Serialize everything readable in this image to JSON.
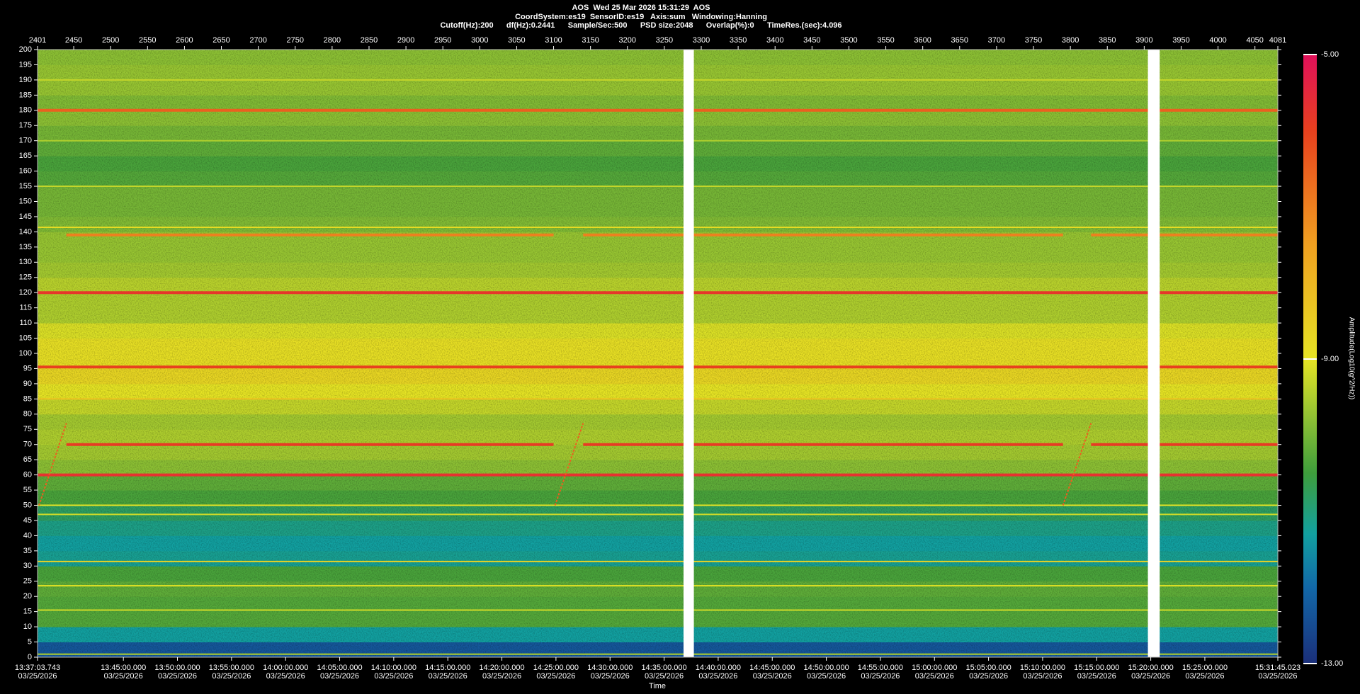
{
  "chart_data": {
    "type": "spectrogram",
    "title": "AOS  Wed 25 Mar 2026 15:31:29  AOS",
    "subtitle": [
      "CoordSystem:es19  SensorID:es19   Axis:sum   Windowing:Hanning",
      "Cutoff(Hz):200      df(Hz):0.2441      Sample/Sec:500      PSD size:2048      Overlap(%):0      TimeRes.(sec):4.096"
    ],
    "xlabel": "Time",
    "colorbar_label": "Amplitude(Log10(g^2/Hz))",
    "xlim": [
      2401,
      4081
    ],
    "xticks": [
      2401,
      2450,
      2500,
      2550,
      2600,
      2650,
      2700,
      2750,
      2800,
      2850,
      2900,
      2950,
      3000,
      3050,
      3100,
      3150,
      3200,
      3250,
      3300,
      3350,
      3400,
      3450,
      3500,
      3550,
      3600,
      3650,
      3700,
      3750,
      3800,
      3850,
      3900,
      3950,
      4000,
      4050,
      4081
    ],
    "time_ticks": [
      {
        "value": 2401,
        "label": "13:37:03.743",
        "date": "03/25/2026"
      },
      {
        "value": 2517.27,
        "label": "13:45:00.000",
        "date": "03/25/2026"
      },
      {
        "value": 2590.51,
        "label": "13:50:00.000",
        "date": "03/25/2026"
      },
      {
        "value": 2663.76,
        "label": "13:55:00.000",
        "date": "03/25/2026"
      },
      {
        "value": 2737.0,
        "label": "14:00:00.000",
        "date": "03/25/2026"
      },
      {
        "value": 2810.24,
        "label": "14:05:00.000",
        "date": "03/25/2026"
      },
      {
        "value": 2883.48,
        "label": "14:10:00.000",
        "date": "03/25/2026"
      },
      {
        "value": 2956.73,
        "label": "14:15:00.000",
        "date": "03/25/2026"
      },
      {
        "value": 3029.97,
        "label": "14:20:00.000",
        "date": "03/25/2026"
      },
      {
        "value": 3103.21,
        "label": "14:25:00.000",
        "date": "03/25/2026"
      },
      {
        "value": 3176.46,
        "label": "14:30:00.000",
        "date": "03/25/2026"
      },
      {
        "value": 3249.7,
        "label": "14:35:00.000",
        "date": "03/25/2026"
      },
      {
        "value": 3322.94,
        "label": "14:40:00.000",
        "date": "03/25/2026"
      },
      {
        "value": 3396.18,
        "label": "14:45:00.000",
        "date": "03/25/2026"
      },
      {
        "value": 3469.43,
        "label": "14:50:00.000",
        "date": "03/25/2026"
      },
      {
        "value": 3542.67,
        "label": "14:55:00.000",
        "date": "03/25/2026"
      },
      {
        "value": 3615.91,
        "label": "15:00:00.000",
        "date": "03/25/2026"
      },
      {
        "value": 3689.16,
        "label": "15:05:00.000",
        "date": "03/25/2026"
      },
      {
        "value": 3762.4,
        "label": "15:10:00.000",
        "date": "03/25/2026"
      },
      {
        "value": 3835.64,
        "label": "15:15:00.000",
        "date": "03/25/2026"
      },
      {
        "value": 3908.88,
        "label": "15:20:00.000",
        "date": "03/25/2026"
      },
      {
        "value": 3982.13,
        "label": "15:25:00.000",
        "date": "03/25/2026"
      },
      {
        "value": 4081,
        "label": "15:31:45.023",
        "date": "03/25/2026"
      }
    ],
    "ylim": [
      0,
      200
    ],
    "yticks": [
      0,
      5,
      10,
      15,
      20,
      25,
      30,
      35,
      40,
      45,
      50,
      55,
      60,
      65,
      70,
      75,
      80,
      85,
      90,
      95,
      100,
      105,
      110,
      115,
      120,
      125,
      130,
      135,
      140,
      145,
      150,
      155,
      160,
      165,
      170,
      175,
      180,
      185,
      190,
      195,
      200
    ],
    "profile": {
      "bins": [
        0,
        5,
        10,
        15,
        20,
        25,
        30,
        35,
        40,
        45,
        50,
        55,
        60,
        65,
        70,
        75,
        80,
        85,
        90,
        95,
        100,
        105,
        110,
        115,
        120,
        125,
        130,
        135,
        140,
        145,
        150,
        155,
        160,
        165,
        170,
        175,
        180,
        185,
        190,
        195,
        200
      ],
      "values": [
        -12.3,
        -11.3,
        -10.3,
        -10.3,
        -10.2,
        -10.4,
        -11.2,
        -11.3,
        -11.1,
        -10.8,
        -10.4,
        -10.2,
        -9.8,
        -9.6,
        -9.5,
        -9.6,
        -9.3,
        -9.0,
        -8.7,
        -8.9,
        -8.9,
        -9.1,
        -9.5,
        -9.5,
        -9.4,
        -9.6,
        -9.7,
        -9.7,
        -9.9,
        -10.0,
        -10.0,
        -10.3,
        -10.4,
        -10.2,
        -10.0,
        -9.8,
        -9.9,
        -9.7,
        -9.7,
        -9.8
      ]
    },
    "lines": [
      {
        "freq": 180,
        "value": -6.5
      },
      {
        "freq": 120,
        "value": -5.8
      },
      {
        "freq": 95.5,
        "value": -6.0
      },
      {
        "freq": 70,
        "value": -5.9,
        "segments": [
          [
            2440,
            3100
          ],
          [
            3140,
            3790
          ],
          [
            3828,
            4081
          ]
        ]
      },
      {
        "freq": 60,
        "value": -5.7
      },
      {
        "freq": 139,
        "value": -7.0,
        "segments": [
          [
            2440,
            3100
          ],
          [
            3140,
            3790
          ],
          [
            3828,
            4081
          ]
        ]
      },
      {
        "freq": 141.5,
        "value": -8.8
      },
      {
        "freq": 31.5,
        "value": -8.6
      },
      {
        "freq": 23.5,
        "value": -9.0
      },
      {
        "freq": 15.5,
        "value": -9.2
      },
      {
        "freq": 190,
        "value": -9.3
      },
      {
        "freq": 155,
        "value": -9.3
      },
      {
        "freq": 170,
        "value": -9.5
      },
      {
        "freq": 85,
        "value": -8.2
      },
      {
        "freq": 50,
        "value": -9.0
      },
      {
        "freq": 47,
        "value": -9.2
      },
      {
        "freq": 1,
        "value": -9.5
      }
    ],
    "sweeps": [
      {
        "x": [
          2403,
          2440
        ],
        "y": [
          50,
          77
        ],
        "value": -6.5
      },
      {
        "x": [
          3102,
          3140
        ],
        "y": [
          50,
          77
        ],
        "value": -6.5
      },
      {
        "x": [
          3790,
          3828
        ],
        "y": [
          50,
          77
        ],
        "value": -6.5
      }
    ],
    "gaps": [
      [
        3276,
        3290
      ],
      [
        3905,
        3921
      ]
    ],
    "clim": [
      -13,
      -5
    ],
    "cticks": [
      {
        "value": -5,
        "label": "-5.00"
      },
      {
        "value": -9,
        "label": "-9.00"
      },
      {
        "value": -13,
        "label": "-13.00"
      }
    ],
    "colorscale": [
      {
        "value": -13,
        "color": "#1b2f7a"
      },
      {
        "value": -12,
        "color": "#1268a8"
      },
      {
        "value": -11.3,
        "color": "#12a0a0"
      },
      {
        "value": -10.5,
        "color": "#3e9e3c"
      },
      {
        "value": -9.8,
        "color": "#8cc034"
      },
      {
        "value": -9,
        "color": "#e6e424"
      },
      {
        "value": -7.5,
        "color": "#f0a020"
      },
      {
        "value": -6,
        "color": "#e8401e"
      },
      {
        "value": -5,
        "color": "#e0105a"
      }
    ]
  }
}
